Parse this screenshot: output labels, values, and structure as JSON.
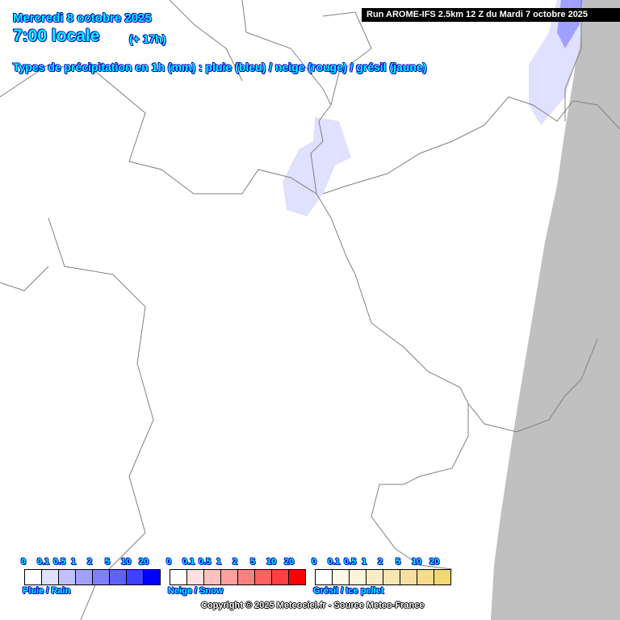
{
  "header": {
    "date": "Mercredi 8 octobre 2025",
    "time": "7:00 locale",
    "lead": "(+ 17h)",
    "subtitle": "Types de précipitation en 1h (mm) : pluie (bleu) / neige (rouge) / grésil (jaune)"
  },
  "run_label": "Run AROME-IFS 2.5km 12 Z du Mardi 7 octobre 2025",
  "legends": [
    {
      "name": "Pluie / Rain",
      "ticks": [
        "0",
        "0.1",
        "0.5",
        "1",
        "2",
        "5",
        "10",
        "20"
      ],
      "colors": [
        "#ffffff",
        "#e0e0ff",
        "#c0c0ff",
        "#a0a0ff",
        "#8080ff",
        "#6060ff",
        "#4040ff",
        "#0000ff"
      ]
    },
    {
      "name": "Neige / Snow",
      "ticks": [
        "0",
        "0.1",
        "0.5",
        "1",
        "2",
        "5",
        "10",
        "20"
      ],
      "colors": [
        "#ffffff",
        "#ffe0e0",
        "#ffc0c0",
        "#ffa0a0",
        "#ff8080",
        "#ff6060",
        "#ff4040",
        "#ff0000"
      ]
    },
    {
      "name": "Grésil / Ice pellet",
      "ticks": [
        "0",
        "0.1",
        "0.5",
        "1",
        "2",
        "5",
        "10",
        "20"
      ],
      "colors": [
        "#ffffff",
        "#fdf8e8",
        "#fbf2d8",
        "#f9ecc8",
        "#f7e6b0",
        "#f5e0a0",
        "#f3dc8a",
        "#f2d870"
      ]
    }
  ],
  "copyright": "Copyright © 2025 Meteociel.fr - Source Meteo-France",
  "colors": {
    "no_data": "#c0c0c0",
    "border": "#808080",
    "text": "#00ffff",
    "text_outline": "#0000c0"
  }
}
